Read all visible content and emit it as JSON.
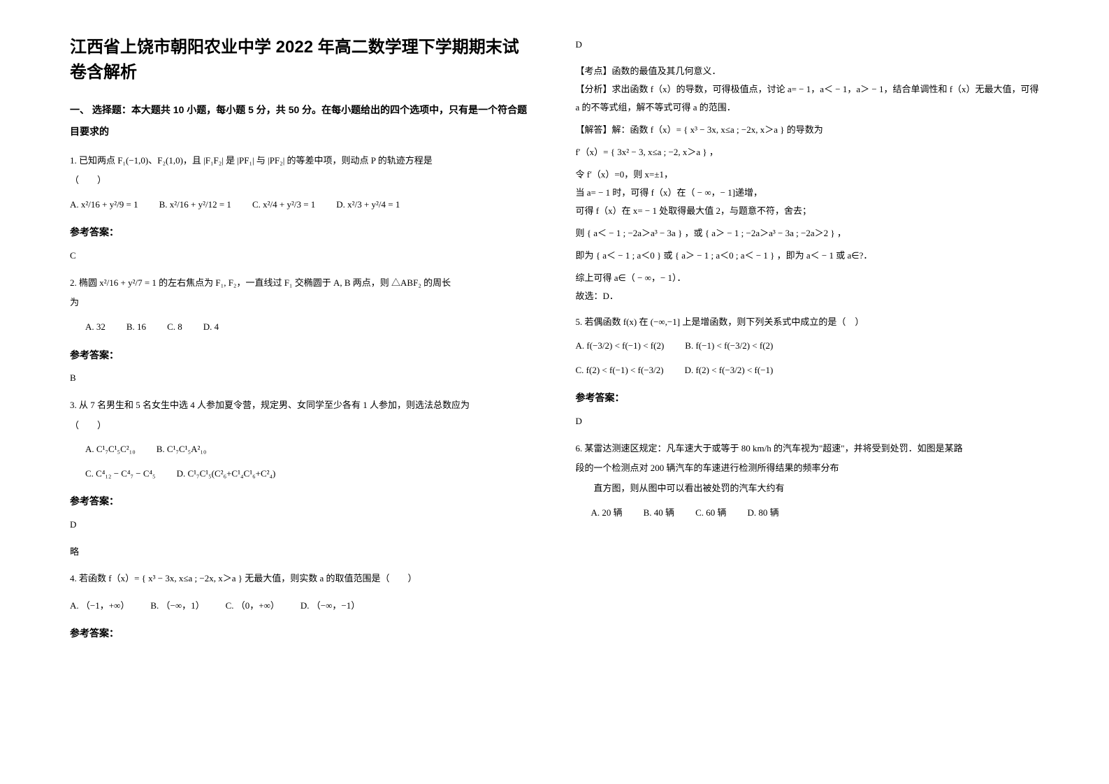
{
  "title": "江西省上饶市朝阳农业中学 2022 年高二数学理下学期期末试卷含解析",
  "section1_head": "一、 选择题：本大题共 10 小题，每小题 5 分，共 50 分。在每小题给出的四个选项中，只有是一个符合题目要求的",
  "q1": {
    "stem": "1. 已知两点 F₁(−1,0)、F₂(1,0)，且 |F₁F₂| 是 |PF₁| 与 |PF₂| 的等差中项，则动点 P 的轨迹方程是",
    "paren": "（　　）",
    "optA": "A. x²/16 + y²/9 = 1",
    "optB": "B. x²/16 + y²/12 = 1",
    "optC": "C. x²/4 + y²/3 = 1",
    "optD": "D. x²/3 + y²/4 = 1",
    "ans_label": "参考答案：",
    "ans": "C"
  },
  "q2": {
    "stem1": "2. 椭圆 x²/16 + y²/7 = 1 的左右焦点为 F₁, F₂，一直线过 F₁ 交椭圆于 A, B 两点，则 △ABF₂ 的周长",
    "stem2": "为",
    "optA": "A. 32",
    "optB": "B. 16",
    "optC": "C. 8",
    "optD": "D. 4",
    "ans_label": "参考答案：",
    "ans": "B"
  },
  "q3": {
    "stem": "3. 从 7 名男生和 5 名女生中选 4 人参加夏令营，规定男、女同学至少各有 1 人参加，则选法总数应为",
    "paren": "（　　）",
    "optA": "A.  C¹₇C¹₅C²₁₀",
    "optB": "B.  C¹₇C¹₅A²₁₀",
    "optC": "C.  C⁴₁₂ − C⁴₇ − C⁴₅",
    "optD": "D.  C¹₇C¹₅(C²₆+C¹₄C¹₆+C²₄)",
    "ans_label": "参考答案：",
    "ans": "D",
    "note": "略"
  },
  "q4": {
    "stem": "4. 若函数 f（x）= { x³ − 3x,  x≤a ;  −2x,  x＞a }  无最大值，则实数 a 的取值范围是（　　）",
    "optA": "A. （−1，+∞）",
    "optB": "B. （−∞，1）",
    "optC": "C. （0，+∞）",
    "optD": "D. （−∞，−1）",
    "ans_label": "参考答案：",
    "ans_top": "D",
    "point": "【考点】函数的最值及其几何意义．",
    "anal": "【分析】求出函数 f（x）的导数，可得极值点，讨论 a= − 1，a＜ − 1，a＞ − 1，结合单调性和 f（x）无最大值，可得 a 的不等式组，解不等式可得 a 的范围．",
    "sol_lead": "【解答】解：函数 f（x）= { x³ − 3x,  x≤a ;  −2x,  x＞a }  的导数为",
    "sol_fprime": "f′（x）= { 3x² − 3,  x≤a ;  −2,  x＞a } ，",
    "sol_l1": "令 f′（x）=0，则 x=±1，",
    "sol_l2": "当 a= − 1 时，可得 f（x）在（ − ∞，− 1]递增，",
    "sol_l3": "可得 f（x）在 x= − 1 处取得最大值 2，与题意不符，舍去；",
    "sol_l4": "则 { a＜ − 1 ; −2a＞a³ − 3a } ，或 { a＞ − 1 ; −2a＞a³ − 3a ; −2a＞2 } ，",
    "sol_l5": "即为 { a＜ − 1 ; a＜0 }  或 { a＞ − 1 ; a＜0 ; a＜ − 1 } ，即为 a＜ − 1 或 a∈?．",
    "sol_l6": "综上可得 a∈（ − ∞，− 1）．",
    "sol_l7": "故选：D．"
  },
  "q5": {
    "stem": "5. 若偶函数 f(x) 在 (−∞,−1] 上是增函数，则下列关系式中成立的是（　）",
    "optA": "A.  f(−3/2) < f(−1) < f(2)",
    "optB": "B.  f(−1) < f(−3/2) < f(2)",
    "optC": "C.  f(2) < f(−1) < f(−3/2)",
    "optD": "D.  f(2) < f(−3/2) < f(−1)",
    "ans_label": "参考答案：",
    "ans": "D"
  },
  "q6": {
    "stem1": "6. 某雷达测速区规定：凡车速大于或等于 80 km/h 的汽车视为\"超速\"，并将受到处罚．如图是某路",
    "stem2": "段的一个检测点对 200 辆汽车的车速进行检测所得结果的频率分布",
    "stem3": "　　直方图，则从图中可以看出被处罚的汽车大约有",
    "optA": "A. 20 辆",
    "optB": "B. 40 辆",
    "optC": "C. 60 辆",
    "optD": "D. 80 辆"
  }
}
